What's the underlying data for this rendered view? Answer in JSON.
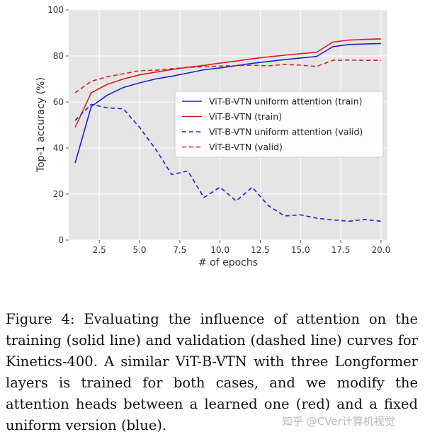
{
  "chart_data": {
    "type": "line",
    "title": "",
    "xlabel": "# of epochs",
    "ylabel": "Top-1 accuracy (%)",
    "xlim": [
      0.6,
      20.4
    ],
    "ylim": [
      0,
      100
    ],
    "x_ticks": [
      "2.5",
      "5.0",
      "7.5",
      "10.0",
      "12.5",
      "15.0",
      "17.5",
      "20.0"
    ],
    "y_ticks": [
      "0",
      "20",
      "40",
      "60",
      "80",
      "100"
    ],
    "grid": true,
    "legend_position": "right",
    "x": [
      1,
      2,
      3,
      4,
      5,
      6,
      7,
      8,
      9,
      10,
      11,
      12,
      13,
      14,
      15,
      16,
      17,
      18,
      19,
      20
    ],
    "series": [
      {
        "name": "ViT-B-VTN uniform attention (train)",
        "color": "#1f1fd4",
        "style": "solid",
        "values": [
          33.5,
          58,
          63,
          66.3,
          68.3,
          70,
          71.2,
          72.6,
          74,
          74.8,
          75.8,
          76.8,
          77.6,
          78.4,
          79.1,
          79.8,
          84,
          85,
          85.2,
          85.4
        ]
      },
      {
        "name": "ViT-B-VTN (train)",
        "color": "#d62020",
        "style": "solid",
        "values": [
          49,
          64,
          67.7,
          70,
          71.8,
          73,
          74.1,
          75.1,
          75.9,
          76.9,
          77.8,
          78.8,
          79.6,
          80.3,
          81,
          81.6,
          86,
          86.9,
          87.2,
          87.4
        ]
      },
      {
        "name": "ViT-B-VTN uniform attention (valid)",
        "color": "#1f1fd4",
        "style": "dashed",
        "values": [
          52,
          59,
          57.5,
          57,
          49,
          39.5,
          28.5,
          30,
          18.5,
          23,
          17,
          23,
          15,
          10.5,
          11,
          9.5,
          8.8,
          8.2,
          9,
          8.2
        ]
      },
      {
        "name": "ViT-B-VTN (valid)",
        "color": "#d62020",
        "style": "dashed",
        "values": [
          64,
          69,
          71,
          72.3,
          73.6,
          73.8,
          74.5,
          75,
          75.3,
          75.6,
          75.8,
          76,
          75.7,
          76.3,
          76,
          75.4,
          78.1,
          78.2,
          78.1,
          78.1
        ]
      }
    ]
  },
  "caption": "Figure 4: Evaluating the influence of attention on the training (solid line) and validation (dashed line) curves for Kinetics-400. A similar ViT-B-VTN with three Longformer layers is trained for both cases, and we modify the attention heads between a learned one (red) and a fixed uniform version (blue).",
  "watermark": "知乎 @CVer计算机视觉"
}
